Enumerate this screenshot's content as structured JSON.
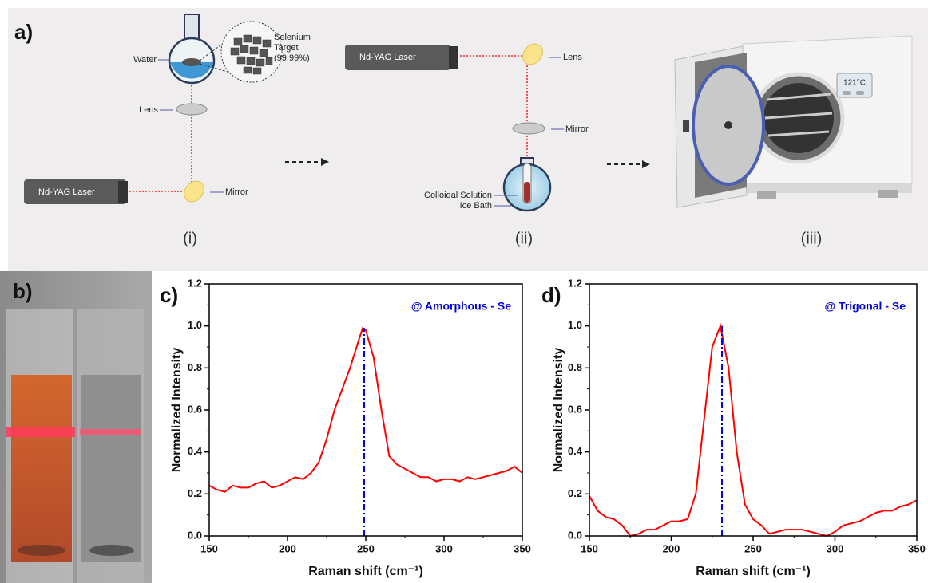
{
  "diagram": {
    "panel": "a)",
    "step1": {
      "water": "Water",
      "target": [
        "Selenium",
        "Target",
        "(99.99%)"
      ],
      "lens": "Lens",
      "laser": "Nd-YAG Laser",
      "mirror": "Mirror",
      "caption": "(i)"
    },
    "step2": {
      "laser": "Nd-YAG Laser",
      "lens": "Lens",
      "mirror": "Mirror",
      "solution": "Colloidal Solution",
      "bath": "Ice Bath",
      "caption": "(ii)"
    },
    "step3": {
      "display": "121°C",
      "caption": "(iii)"
    }
  },
  "photo": {
    "panel": "b)"
  },
  "chart_data": [
    {
      "type": "line",
      "panel": "c)",
      "annotation": "@ Amorphous - Se",
      "xlabel": "Raman shift (cm⁻¹)",
      "ylabel": "Normalized Intensity",
      "color": "#ff0000",
      "marker_x": 249,
      "marker_color": "#0000dd",
      "x": [
        150,
        155,
        160,
        165,
        170,
        175,
        180,
        185,
        190,
        195,
        200,
        205,
        210,
        215,
        220,
        225,
        230,
        235,
        240,
        245,
        248,
        250,
        255,
        260,
        265,
        270,
        275,
        280,
        285,
        290,
        295,
        300,
        305,
        310,
        315,
        320,
        325,
        330,
        335,
        340,
        345,
        350
      ],
      "values": [
        0.24,
        0.22,
        0.21,
        0.24,
        0.23,
        0.23,
        0.25,
        0.26,
        0.23,
        0.24,
        0.26,
        0.28,
        0.27,
        0.3,
        0.35,
        0.46,
        0.6,
        0.7,
        0.8,
        0.92,
        0.99,
        0.98,
        0.85,
        0.6,
        0.38,
        0.34,
        0.32,
        0.3,
        0.28,
        0.28,
        0.26,
        0.27,
        0.27,
        0.26,
        0.28,
        0.27,
        0.28,
        0.29,
        0.3,
        0.31,
        0.33,
        0.3
      ],
      "xlim": [
        150,
        350
      ],
      "xticks": [
        150,
        200,
        250,
        300,
        350
      ],
      "ylim": [
        0,
        1.2
      ],
      "yticks": [
        {
          "value": 0,
          "label": "0.0"
        },
        0.2,
        0.4,
        0.6,
        0.8,
        {
          "value": 1,
          "label": "1.0"
        },
        1.2
      ]
    },
    {
      "type": "line",
      "panel": "d)",
      "annotation": "@ Trigonal - Se",
      "xlabel": "Raman shift (cm⁻¹)",
      "ylabel": "Normalized Intensity",
      "color": "#ff0000",
      "marker_x": 231,
      "marker_color": "#0000dd",
      "x": [
        150,
        155,
        160,
        165,
        170,
        175,
        180,
        185,
        190,
        195,
        200,
        205,
        210,
        215,
        220,
        225,
        230,
        235,
        240,
        245,
        250,
        255,
        260,
        265,
        270,
        275,
        280,
        285,
        290,
        295,
        300,
        305,
        310,
        315,
        320,
        325,
        330,
        335,
        340,
        345,
        350
      ],
      "values": [
        0.19,
        0.12,
        0.09,
        0.08,
        0.05,
        0.0,
        0.01,
        0.03,
        0.03,
        0.05,
        0.07,
        0.07,
        0.08,
        0.2,
        0.55,
        0.9,
        1.0,
        0.8,
        0.4,
        0.15,
        0.08,
        0.05,
        0.01,
        0.02,
        0.03,
        0.03,
        0.03,
        0.02,
        0.01,
        0.0,
        0.02,
        0.05,
        0.06,
        0.07,
        0.09,
        0.11,
        0.12,
        0.12,
        0.14,
        0.15,
        0.17
      ],
      "xlim": [
        150,
        350
      ],
      "xticks": [
        150,
        200,
        250,
        300,
        350
      ],
      "ylim": [
        0,
        1.2
      ],
      "yticks": [
        {
          "value": 0,
          "label": "0.0"
        },
        0.2,
        0.4,
        0.6,
        0.8,
        {
          "value": 1,
          "label": "1.0"
        },
        1.2
      ]
    }
  ]
}
